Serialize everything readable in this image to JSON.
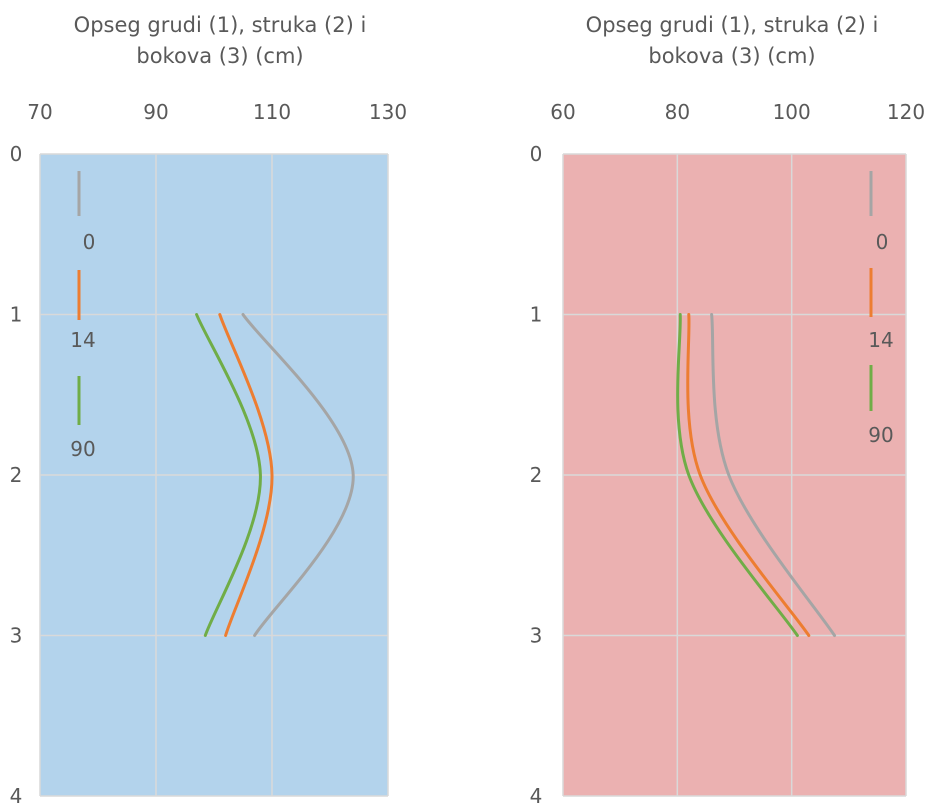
{
  "chart_data": [
    {
      "type": "line",
      "title_lines": [
        "Opseg grudi (1), struka (2) i",
        "bokova (3) (cm)"
      ],
      "x_axis_position": "top",
      "xlim": [
        70,
        130
      ],
      "x_ticks": [
        "70",
        "90",
        "110",
        "130"
      ],
      "x_tick_values": [
        70,
        90,
        110,
        130
      ],
      "ylim": [
        0,
        4
      ],
      "y_ticks": [
        "0",
        "1",
        "2",
        "3",
        "4"
      ],
      "y_tick_values": [
        0,
        1,
        2,
        3,
        4
      ],
      "y_reversed": true,
      "grid": true,
      "plot_background": "#b3d3ec",
      "legend_position": "left",
      "series": [
        {
          "name": "0",
          "color": "#a5a5a5",
          "x": [
            105,
            124,
            107
          ],
          "y": [
            1,
            2,
            3
          ]
        },
        {
          "name": "14",
          "color": "#ed7d31",
          "x": [
            101,
            110,
            102
          ],
          "y": [
            1,
            2,
            3
          ]
        },
        {
          "name": "90",
          "color": "#70ad47",
          "x": [
            97,
            108,
            98.5
          ],
          "y": [
            1,
            2,
            3
          ]
        }
      ]
    },
    {
      "type": "line",
      "title_lines": [
        "Opseg grudi (1), struka (2) i",
        "bokova (3) (cm)"
      ],
      "x_axis_position": "top",
      "xlim": [
        60,
        120
      ],
      "x_ticks": [
        "60",
        "80",
        "100",
        "120"
      ],
      "x_tick_values": [
        60,
        80,
        100,
        120
      ],
      "ylim": [
        0,
        4
      ],
      "y_ticks": [
        "0",
        "1",
        "2",
        "3",
        "4"
      ],
      "y_tick_values": [
        0,
        1,
        2,
        3,
        4
      ],
      "y_reversed": true,
      "grid": true,
      "plot_background": "#ebb1b1",
      "legend_position": "right",
      "series": [
        {
          "name": "0",
          "color": "#a5a5a5",
          "x": [
            86,
            89,
            107.5
          ],
          "y": [
            1,
            2,
            3
          ]
        },
        {
          "name": "14",
          "color": "#ed7d31",
          "x": [
            82,
            84,
            103
          ],
          "y": [
            1,
            2,
            3
          ]
        },
        {
          "name": "90",
          "color": "#70ad47",
          "x": [
            80.5,
            82,
            101
          ],
          "y": [
            1,
            2,
            3
          ]
        }
      ]
    }
  ]
}
